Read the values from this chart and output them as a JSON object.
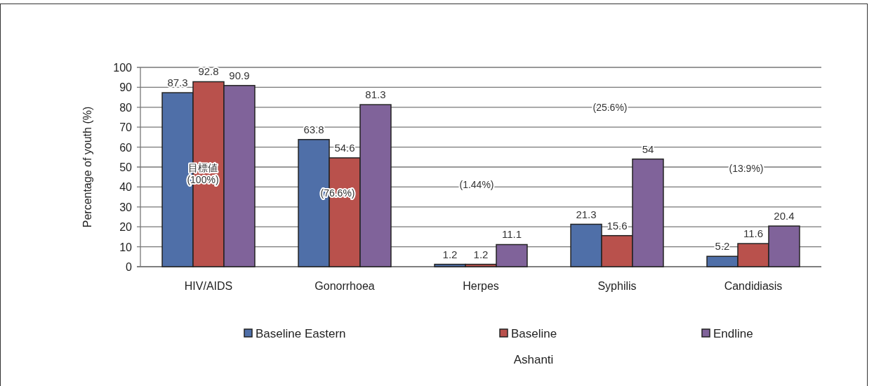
{
  "chart_data": {
    "type": "bar",
    "ylabel": "Percentage of youth (%)",
    "categories": [
      "HIV/AIDS",
      "Gonorrhoea",
      "Herpes",
      "Syphilis",
      "Candidiasis"
    ],
    "series": [
      {
        "name": "Baseline Eastern",
        "color": "#4f6fa8",
        "values": [
          87.3,
          63.8,
          1.2,
          21.3,
          5.2
        ]
      },
      {
        "name": "Baseline",
        "color": "#b9514c",
        "values": [
          92.8,
          54.6,
          1.2,
          15.6,
          11.6
        ]
      },
      {
        "name": "Endline",
        "color": "#80639a",
        "values": [
          90.9,
          81.3,
          11.1,
          54,
          20.4
        ]
      }
    ],
    "ylim": [
      0,
      100
    ],
    "yticks": [
      0,
      10,
      20,
      30,
      40,
      50,
      60,
      70,
      80,
      90,
      100
    ],
    "grid": "y",
    "legend": "bottom",
    "data_labels": true,
    "annotations": [
      "目標値\n(100%)",
      "(76.6%)",
      "(1.44%)",
      "(25.6%)",
      "(13.9%)",
      "Ashanti"
    ]
  }
}
